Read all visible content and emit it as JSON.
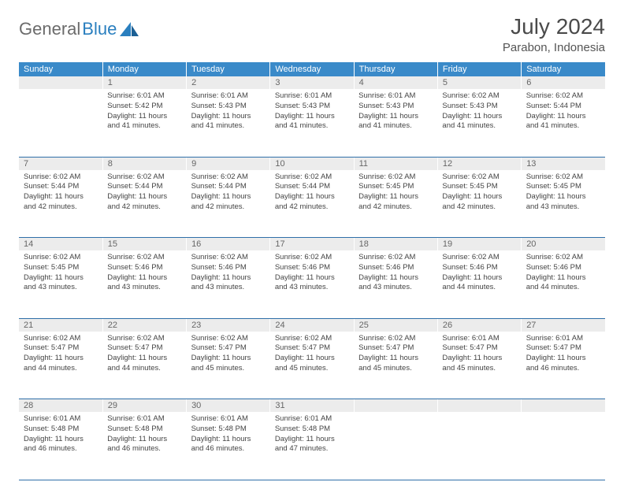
{
  "logo": {
    "text1": "General",
    "text2": "Blue"
  },
  "title": "July 2024",
  "location": "Parabon, Indonesia",
  "colors": {
    "header_bg": "#3a8ac9",
    "header_text": "#ffffff",
    "daynum_bg": "#ececec",
    "daynum_text": "#666666",
    "cell_text": "#444444",
    "rule": "#2f6fa8",
    "logo_gray": "#6b6b6b",
    "logo_blue": "#2a7fbf"
  },
  "weekdays": [
    "Sunday",
    "Monday",
    "Tuesday",
    "Wednesday",
    "Thursday",
    "Friday",
    "Saturday"
  ],
  "weeks": [
    [
      null,
      {
        "n": "1",
        "sr": "6:01 AM",
        "ss": "5:42 PM",
        "dl": "11 hours and 41 minutes."
      },
      {
        "n": "2",
        "sr": "6:01 AM",
        "ss": "5:43 PM",
        "dl": "11 hours and 41 minutes."
      },
      {
        "n": "3",
        "sr": "6:01 AM",
        "ss": "5:43 PM",
        "dl": "11 hours and 41 minutes."
      },
      {
        "n": "4",
        "sr": "6:01 AM",
        "ss": "5:43 PM",
        "dl": "11 hours and 41 minutes."
      },
      {
        "n": "5",
        "sr": "6:02 AM",
        "ss": "5:43 PM",
        "dl": "11 hours and 41 minutes."
      },
      {
        "n": "6",
        "sr": "6:02 AM",
        "ss": "5:44 PM",
        "dl": "11 hours and 41 minutes."
      }
    ],
    [
      {
        "n": "7",
        "sr": "6:02 AM",
        "ss": "5:44 PM",
        "dl": "11 hours and 42 minutes."
      },
      {
        "n": "8",
        "sr": "6:02 AM",
        "ss": "5:44 PM",
        "dl": "11 hours and 42 minutes."
      },
      {
        "n": "9",
        "sr": "6:02 AM",
        "ss": "5:44 PM",
        "dl": "11 hours and 42 minutes."
      },
      {
        "n": "10",
        "sr": "6:02 AM",
        "ss": "5:44 PM",
        "dl": "11 hours and 42 minutes."
      },
      {
        "n": "11",
        "sr": "6:02 AM",
        "ss": "5:45 PM",
        "dl": "11 hours and 42 minutes."
      },
      {
        "n": "12",
        "sr": "6:02 AM",
        "ss": "5:45 PM",
        "dl": "11 hours and 42 minutes."
      },
      {
        "n": "13",
        "sr": "6:02 AM",
        "ss": "5:45 PM",
        "dl": "11 hours and 43 minutes."
      }
    ],
    [
      {
        "n": "14",
        "sr": "6:02 AM",
        "ss": "5:45 PM",
        "dl": "11 hours and 43 minutes."
      },
      {
        "n": "15",
        "sr": "6:02 AM",
        "ss": "5:46 PM",
        "dl": "11 hours and 43 minutes."
      },
      {
        "n": "16",
        "sr": "6:02 AM",
        "ss": "5:46 PM",
        "dl": "11 hours and 43 minutes."
      },
      {
        "n": "17",
        "sr": "6:02 AM",
        "ss": "5:46 PM",
        "dl": "11 hours and 43 minutes."
      },
      {
        "n": "18",
        "sr": "6:02 AM",
        "ss": "5:46 PM",
        "dl": "11 hours and 43 minutes."
      },
      {
        "n": "19",
        "sr": "6:02 AM",
        "ss": "5:46 PM",
        "dl": "11 hours and 44 minutes."
      },
      {
        "n": "20",
        "sr": "6:02 AM",
        "ss": "5:46 PM",
        "dl": "11 hours and 44 minutes."
      }
    ],
    [
      {
        "n": "21",
        "sr": "6:02 AM",
        "ss": "5:47 PM",
        "dl": "11 hours and 44 minutes."
      },
      {
        "n": "22",
        "sr": "6:02 AM",
        "ss": "5:47 PM",
        "dl": "11 hours and 44 minutes."
      },
      {
        "n": "23",
        "sr": "6:02 AM",
        "ss": "5:47 PM",
        "dl": "11 hours and 45 minutes."
      },
      {
        "n": "24",
        "sr": "6:02 AM",
        "ss": "5:47 PM",
        "dl": "11 hours and 45 minutes."
      },
      {
        "n": "25",
        "sr": "6:02 AM",
        "ss": "5:47 PM",
        "dl": "11 hours and 45 minutes."
      },
      {
        "n": "26",
        "sr": "6:01 AM",
        "ss": "5:47 PM",
        "dl": "11 hours and 45 minutes."
      },
      {
        "n": "27",
        "sr": "6:01 AM",
        "ss": "5:47 PM",
        "dl": "11 hours and 46 minutes."
      }
    ],
    [
      {
        "n": "28",
        "sr": "6:01 AM",
        "ss": "5:48 PM",
        "dl": "11 hours and 46 minutes."
      },
      {
        "n": "29",
        "sr": "6:01 AM",
        "ss": "5:48 PM",
        "dl": "11 hours and 46 minutes."
      },
      {
        "n": "30",
        "sr": "6:01 AM",
        "ss": "5:48 PM",
        "dl": "11 hours and 46 minutes."
      },
      {
        "n": "31",
        "sr": "6:01 AM",
        "ss": "5:48 PM",
        "dl": "11 hours and 47 minutes."
      },
      null,
      null,
      null
    ]
  ],
  "labels": {
    "sunrise": "Sunrise:",
    "sunset": "Sunset:",
    "daylight": "Daylight:"
  }
}
